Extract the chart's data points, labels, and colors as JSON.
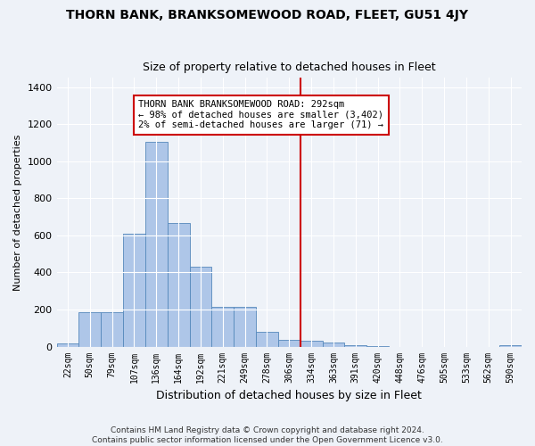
{
  "title": "THORN BANK, BRANKSOMEWOOD ROAD, FLEET, GU51 4JY",
  "subtitle": "Size of property relative to detached houses in Fleet",
  "xlabel": "Distribution of detached houses by size in Fleet",
  "ylabel": "Number of detached properties",
  "categories": [
    "22sqm",
    "50sqm",
    "79sqm",
    "107sqm",
    "136sqm",
    "164sqm",
    "192sqm",
    "221sqm",
    "249sqm",
    "278sqm",
    "306sqm",
    "334sqm",
    "363sqm",
    "391sqm",
    "420sqm",
    "448sqm",
    "476sqm",
    "505sqm",
    "533sqm",
    "562sqm",
    "590sqm"
  ],
  "values": [
    15,
    185,
    185,
    608,
    1105,
    668,
    430,
    215,
    215,
    80,
    38,
    30,
    20,
    8,
    5,
    0,
    0,
    0,
    0,
    0,
    8
  ],
  "bar_color": "#aec6e8",
  "bar_edge_color": "#5588bb",
  "property_line_x": 10.5,
  "annotation_text": "THORN BANK BRANKSOMEWOOD ROAD: 292sqm\n← 98% of detached houses are smaller (3,402)\n2% of semi-detached houses are larger (71) →",
  "annotation_box_color": "#ffffff",
  "annotation_box_edge": "#cc0000",
  "vline_color": "#cc0000",
  "background_color": "#eef2f8",
  "footer_line1": "Contains HM Land Registry data © Crown copyright and database right 2024.",
  "footer_line2": "Contains public sector information licensed under the Open Government Licence v3.0.",
  "ylim": [
    0,
    1450
  ],
  "yticks": [
    0,
    200,
    400,
    600,
    800,
    1000,
    1200,
    1400
  ]
}
